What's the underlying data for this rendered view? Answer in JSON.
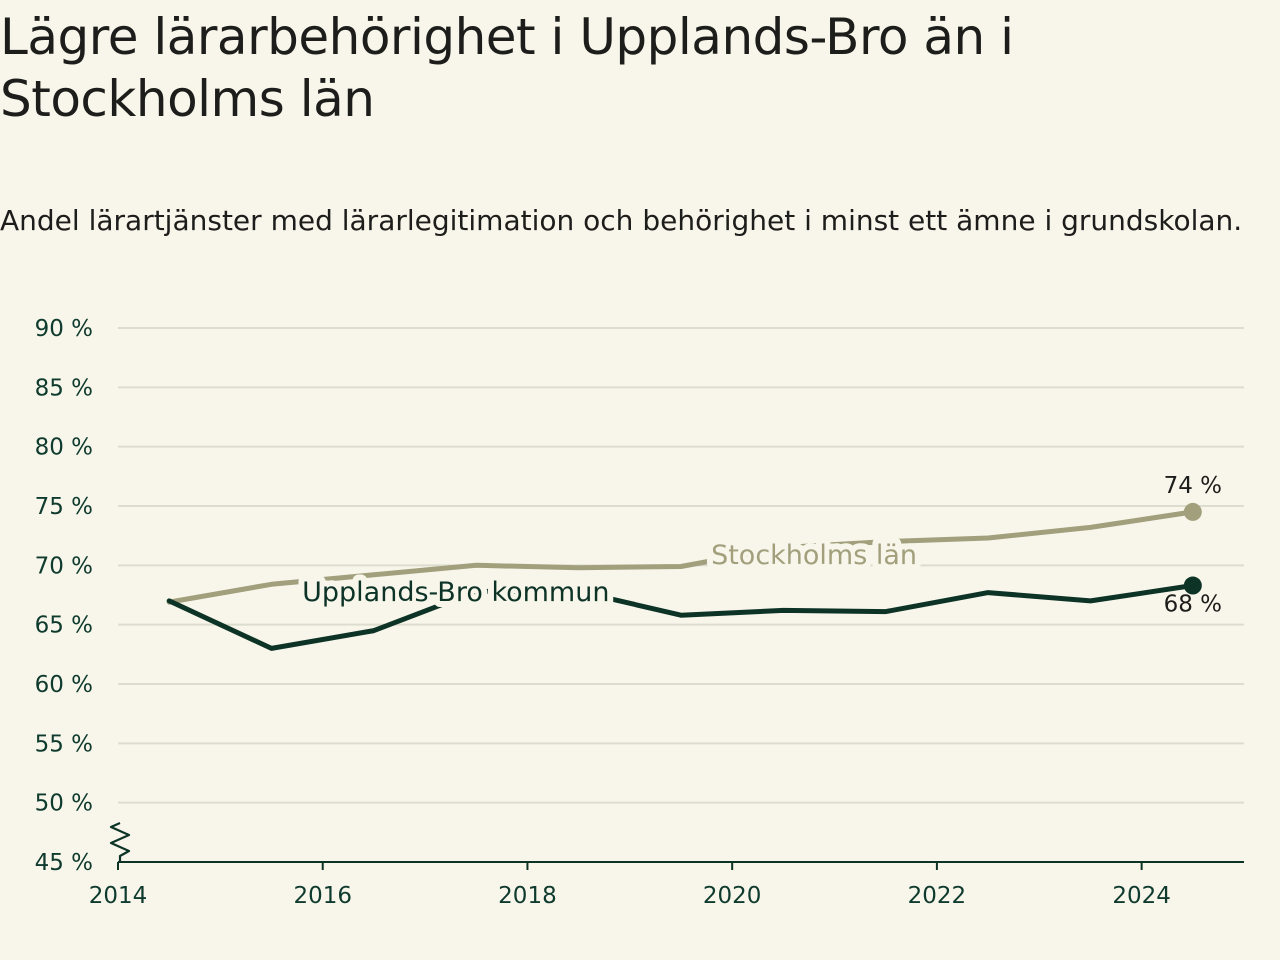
{
  "page": {
    "title": "Lägre lärarbehörighet i Upplands-Bro än i Stockholms län",
    "subtitle": "Andel lärartjänster med lärarlegitimation och behörighet i minst ett ämne i grundskolan."
  },
  "chart_data": {
    "type": "line",
    "title": "Lägre lärarbehörighet i Upplands-Bro än i Stockholms län",
    "subtitle": "Andel lärartjänster med lärarlegitimation och behörighet i minst ett ämne i grundskolan.",
    "xlabel": "",
    "ylabel": "",
    "xlim": [
      2014,
      2025
    ],
    "ylim": [
      45,
      90
    ],
    "y_axis_break": true,
    "grid": true,
    "x_ticks": [
      2014,
      2016,
      2018,
      2020,
      2022,
      2024
    ],
    "x_tick_labels": [
      "2014",
      "2016",
      "2018",
      "2020",
      "2022",
      "2024"
    ],
    "y_ticks": [
      45,
      50,
      55,
      60,
      65,
      70,
      75,
      80,
      85,
      90
    ],
    "y_tick_labels": [
      "45 %",
      "50 %",
      "55 %",
      "60 %",
      "65 %",
      "70 %",
      "75 %",
      "80 %",
      "85 %",
      "90 %"
    ],
    "series": [
      {
        "name": "Stockholms län",
        "color": "#a29f7d",
        "x": [
          2014.5,
          2015.5,
          2016.5,
          2017.5,
          2018.5,
          2019.5,
          2020.5,
          2021.5,
          2022.5,
          2023.5,
          2024.5
        ],
        "values": [
          66.9,
          68.4,
          69.2,
          70.0,
          69.8,
          69.9,
          71.5,
          72.0,
          72.3,
          73.2,
          74.5
        ],
        "end_label": "74 %"
      },
      {
        "name": "Upplands-Bro kommun",
        "color": "#0d3327",
        "x": [
          2014.5,
          2015.5,
          2016.5,
          2017.5,
          2018.5,
          2019.5,
          2020.5,
          2021.5,
          2022.5,
          2023.5,
          2024.5
        ],
        "values": [
          67.0,
          63.0,
          64.5,
          67.8,
          67.8,
          65.8,
          66.2,
          66.1,
          67.7,
          67.0,
          68.3
        ],
        "end_label": "68 %"
      }
    ]
  }
}
